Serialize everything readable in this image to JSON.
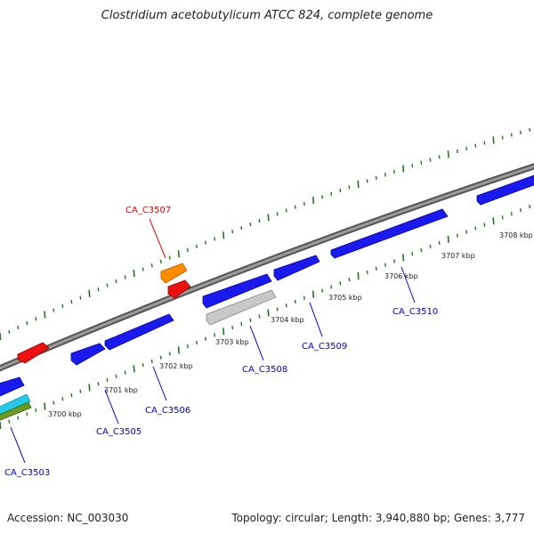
{
  "title": "Clostridium acetobutylicum ATCC 824, complete genome",
  "footer": {
    "accession": "Accession: NC_003030",
    "summary": "Topology: circular; Length: 3,940,880 bp; Genes: 3,777"
  },
  "colors": {
    "backbone": "#7a7a7a",
    "tick": "#1a7a1a",
    "forward": "#1a1aee",
    "reverse": "#ee1111",
    "label_forward": "#0000cc",
    "label_reverse": "#dd0000"
  },
  "scale": {
    "tick_labels": [
      "3700 kbp",
      "3701 kbp",
      "3702 kbp",
      "3703 kbp",
      "3704 kbp",
      "3705 kbp",
      "3706 kbp",
      "3707 kbp",
      "3708 kbp"
    ]
  },
  "genes": [
    {
      "id": "g3503",
      "label": "CA_C3503",
      "color": "#1a1aee"
    },
    {
      "id": "g3505",
      "label": "CA_C3505",
      "color": "#1a1aee"
    },
    {
      "id": "g3506",
      "label": "CA_C3506",
      "color": "#1a1aee"
    },
    {
      "id": "g3507",
      "label": "CA_C3507",
      "color": "#ff8c00"
    },
    {
      "id": "g3508",
      "label": "CA_C3508",
      "color": "#c8c8c8"
    },
    {
      "id": "g3509",
      "label": "CA_C3509",
      "color": "#1a1aee"
    },
    {
      "id": "g3510",
      "label": "CA_C3510",
      "color": "#1a1aee"
    }
  ]
}
